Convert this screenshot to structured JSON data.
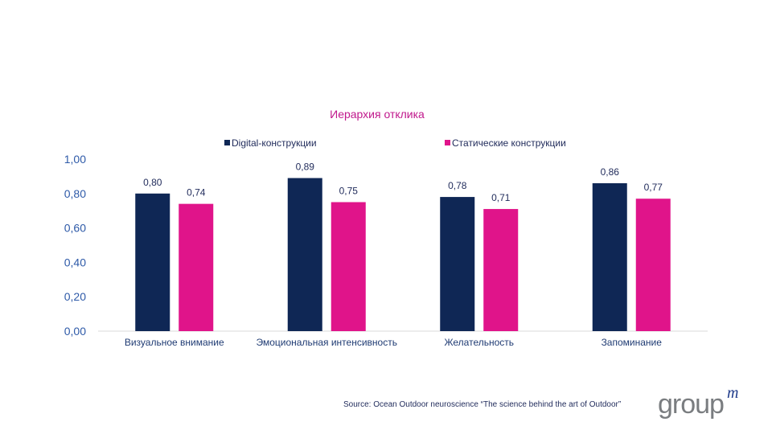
{
  "chart_data": {
    "type": "bar",
    "title": "Иерархия отклика",
    "categories": [
      "Визуальное внимание",
      "Эмоциональная интенсивность",
      "Желательность",
      "Запоминание"
    ],
    "series": [
      {
        "name": "Digital-конструкции",
        "values": [
          0.8,
          0.89,
          0.78,
          0.86
        ],
        "labels": [
          "0,80",
          "0,89",
          "0,78",
          "0,86"
        ],
        "color": "#0f2755"
      },
      {
        "name": "Статические  конструкции",
        "values": [
          0.74,
          0.75,
          0.71,
          0.77
        ],
        "labels": [
          "0,74",
          "0,75",
          "0,71",
          "0,77"
        ],
        "color": "#e0148a"
      }
    ],
    "ylim": [
      0,
      1
    ],
    "yticks": [
      0,
      0.2,
      0.4,
      0.6,
      0.8,
      1.0
    ],
    "ytick_labels": [
      "0,00",
      "0,20",
      "0,40",
      "0,60",
      "0,80",
      "1,00"
    ],
    "legend_position": "top",
    "grid": false,
    "title_color": "#c0188c",
    "axis_text_color": "#2e5aa8",
    "category_text_color": "#1f3b73"
  },
  "source": "Source: Ocean Outdoor neuroscience “The science behind the art of Outdoor”",
  "logo": {
    "text": "group",
    "superscript": "m"
  }
}
